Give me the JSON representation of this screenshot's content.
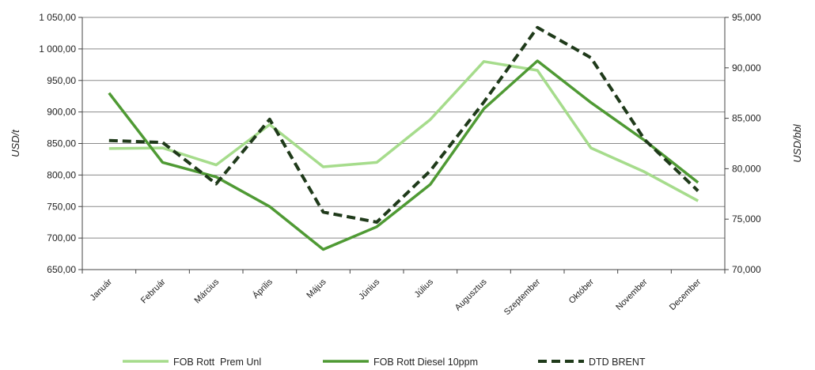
{
  "chart_data": {
    "type": "line",
    "categories": [
      "Január",
      "Február",
      "Március",
      "Április",
      "Május",
      "Június",
      "Július",
      "Augusztus",
      "Szeptember",
      "Október",
      "November",
      "December"
    ],
    "ylabel": "USD/t",
    "y2label": "USD/bbl",
    "ylim": [
      650,
      1050
    ],
    "y2lim": [
      70,
      95
    ],
    "yticks": [
      "650,00",
      "700,00",
      "750,00",
      "800,00",
      "850,00",
      "900,00",
      "950,00",
      "1 000,00",
      "1 050,00"
    ],
    "y2ticks": [
      "70,000",
      "75,000",
      "80,000",
      "85,000",
      "90,000",
      "95,000"
    ],
    "grid": true,
    "legend_position": "bottom",
    "series": [
      {
        "name": "FOB Rott  Prem Unl",
        "axis": "left",
        "color": "#a6dc8c",
        "style": "solid",
        "values": [
          842,
          843,
          816,
          880,
          813,
          820,
          888,
          980,
          966,
          843,
          805,
          759
        ]
      },
      {
        "name": "FOB Rott Diesel 10ppm",
        "axis": "left",
        "color": "#4f9a34",
        "style": "solid",
        "values": [
          930,
          820,
          797,
          750,
          682,
          718,
          785,
          905,
          981,
          915,
          855,
          788
        ]
      },
      {
        "name": "DTD BRENT",
        "axis": "right",
        "color": "#1f3a1a",
        "style": "dashed",
        "values": [
          82.8,
          82.6,
          78.5,
          84.9,
          75.7,
          74.7,
          79.8,
          86.6,
          94.0,
          91.0,
          82.9,
          77.8
        ]
      }
    ]
  }
}
